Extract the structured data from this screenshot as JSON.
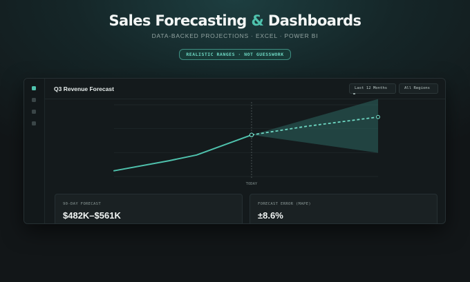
{
  "hero": {
    "title_part1": "Sales Forecasting",
    "title_amp": "&",
    "title_part2": "Dashboards",
    "subtitle": "DATA-BACKED PROJECTIONS · EXCEL · POWER BI",
    "badge": "REALISTIC RANGES · NOT GUESSWORK"
  },
  "colors": {
    "accent": "#4fc2ad",
    "background": "#121618",
    "panel": "#141a1c"
  },
  "sidebar": {
    "items": [
      {
        "icon": "nav-dot-icon",
        "active": true
      },
      {
        "icon": "nav-dot-icon",
        "active": false
      },
      {
        "icon": "nav-dot-icon",
        "active": false
      },
      {
        "icon": "nav-dot-icon",
        "active": false
      }
    ]
  },
  "panel": {
    "title": "Q3 Revenue Forecast",
    "filter_period": "Last 12 Months",
    "filter_region": "All Regions"
  },
  "chart_data": {
    "type": "line",
    "title": "",
    "marker_label": "TODAY",
    "grid": true,
    "x": [
      0,
      1,
      2,
      3,
      4
    ],
    "y_range": [
      0,
      100
    ],
    "series": [
      {
        "style": "solid",
        "x": [
          0,
          1,
          1.5,
          2.5
        ],
        "values": [
          8,
          22,
          30,
          58
        ]
      },
      {
        "style": "dashed",
        "x": [
          2.5,
          3,
          3.5,
          4.8
        ],
        "values": [
          58,
          64,
          70,
          83
        ]
      }
    ],
    "band": {
      "x": [
        2.5,
        4.8
      ],
      "upper": [
        58,
        108
      ],
      "lower": [
        58,
        33
      ]
    },
    "today_x": 2.5
  },
  "stats": [
    {
      "label": "90-DAY FORECAST",
      "value": "$482K–$561K"
    },
    {
      "label": "FORECAST ERROR (MAPE)",
      "value": "±8.6%"
    }
  ]
}
